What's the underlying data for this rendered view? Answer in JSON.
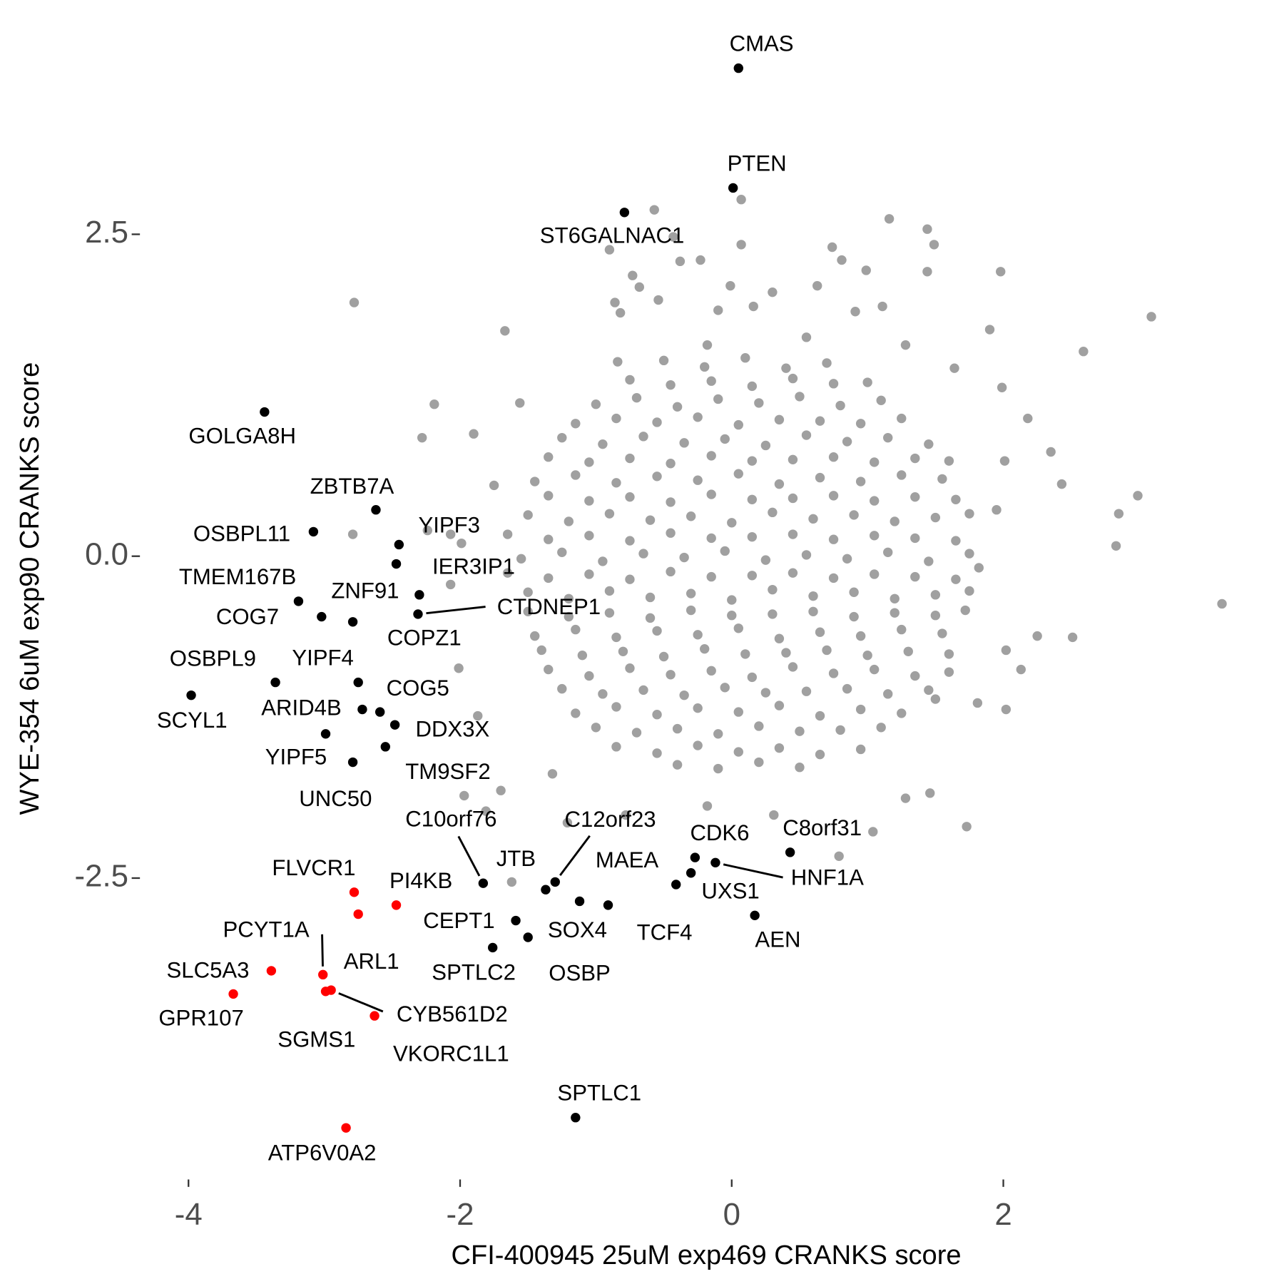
{
  "chart_data": {
    "type": "scatter",
    "x_label": "CFI-400945 25uM exp469 CRANKS score",
    "y_label": "WYE-354 6uM exp90 CRANKS score",
    "xlim": [
      -4.3,
      3.9
    ],
    "ylim": [
      -4.7,
      4.0
    ],
    "xticks": [
      -4,
      -2,
      0,
      2
    ],
    "yticks": [
      -2.5,
      {
        "value": 0,
        "label": "0.0"
      },
      2.5
    ],
    "series": [
      {
        "color": "#a0a0a0",
        "x": [
          -0.5,
          -0.2,
          0.1,
          0.4,
          0.7,
          -1.0,
          -0.7,
          -0.4,
          -0.1,
          0.2,
          0.5,
          0.8,
          1.1,
          -1.25,
          -0.95,
          -0.65,
          -0.35,
          -0.05,
          0.25,
          0.55,
          0.85,
          1.15,
          1.45,
          -1.45,
          -1.15,
          -0.85,
          -0.55,
          -0.25,
          0.05,
          0.35,
          0.65,
          0.95,
          1.25,
          1.55,
          -1.5,
          -1.2,
          -0.9,
          -0.6,
          -0.3,
          0.0,
          0.3,
          0.6,
          0.9,
          1.2,
          1.5,
          1.75,
          -1.55,
          -1.25,
          -0.95,
          -0.65,
          -0.35,
          -0.05,
          0.25,
          0.55,
          0.85,
          1.15,
          1.45,
          1.75,
          -1.5,
          -1.2,
          -0.9,
          -0.6,
          -0.3,
          0.0,
          0.3,
          0.6,
          0.9,
          1.2,
          1.5,
          1.75,
          -1.45,
          -1.15,
          -0.85,
          -0.55,
          -0.25,
          0.05,
          0.35,
          0.65,
          0.95,
          1.25,
          1.55,
          -1.35,
          -1.05,
          -0.75,
          -0.45,
          -0.15,
          0.15,
          0.45,
          0.75,
          1.05,
          1.35,
          1.6,
          -1.15,
          -0.85,
          -0.55,
          -0.25,
          0.05,
          0.35,
          0.65,
          0.95,
          1.25,
          -0.85,
          -0.55,
          -0.25,
          0.05,
          0.35,
          0.65,
          0.95,
          -0.75,
          -0.45,
          -0.15,
          0.15,
          0.45,
          0.75,
          1.0,
          -1.15,
          -0.85,
          -0.55,
          -0.25,
          0.05,
          0.35,
          0.65,
          0.95,
          1.25,
          -1.35,
          -1.05,
          -0.75,
          -0.45,
          -0.15,
          0.15,
          0.45,
          0.75,
          1.05,
          1.35,
          1.6,
          -1.35,
          -1.05,
          -0.75,
          -0.45,
          -0.15,
          0.15,
          0.45,
          0.75,
          1.05,
          1.35,
          1.65,
          -1.65,
          -1.35,
          -1.05,
          -0.75,
          -0.45,
          -0.15,
          0.15,
          0.45,
          0.75,
          1.05,
          1.35,
          1.65,
          -1.65,
          -1.35,
          -1.05,
          -0.75,
          -0.45,
          -0.15,
          0.15,
          0.45,
          0.75,
          1.05,
          1.35,
          1.65,
          -1.5,
          -1.2,
          -0.9,
          -0.6,
          -0.3,
          0.0,
          0.3,
          0.6,
          0.9,
          1.2,
          1.5,
          1.72,
          -1.4,
          -1.1,
          -0.8,
          -0.5,
          -0.2,
          0.1,
          0.4,
          0.7,
          1.0,
          1.3,
          1.6,
          -1.25,
          -0.95,
          -0.65,
          -0.35,
          -0.05,
          0.25,
          0.55,
          0.85,
          1.15,
          1.45,
          -1.0,
          -0.7,
          -0.4,
          -0.1,
          0.2,
          0.5,
          0.8,
          1.1,
          -0.4,
          -0.1,
          0.2,
          0.5,
          -0.57,
          0.07,
          0.07,
          -0.43,
          -0.9,
          -0.38,
          -0.23,
          1.16,
          1.44,
          1.49,
          0.74,
          0.81,
          0.99,
          1.44,
          1.98,
          -0.73,
          -0.68,
          -0.01,
          0.3,
          0.63,
          -2.78,
          3.09,
          -0.86,
          -0.82,
          -0.54,
          0.16,
          -0.1,
          0.91,
          1.11,
          -1.67,
          1.9,
          2.59,
          1.64,
          1.99,
          -2.19,
          -1.56,
          2.18,
          -2.28,
          -1.9,
          2.35,
          2.43,
          2.99,
          2.85,
          2.83,
          -2.79,
          3.61,
          2.51,
          2.25,
          2.02,
          2.13,
          1.5,
          2.02,
          1.81,
          1.46,
          1.73,
          1.28,
          0.79,
          -1.97,
          -1.7,
          -1.62,
          -1.32,
          -1.81,
          -2.01,
          -2.07,
          -2.24,
          -2.07,
          -1.99,
          -1.75,
          -1.87,
          -1.21,
          -0.78,
          -0.18,
          0.31,
          1.04,
          1.82,
          1.95,
          2.01,
          1.28,
          0.55,
          -0.18,
          -0.84
        ],
        "values": [
          1.52,
          1.47,
          1.54,
          1.46,
          1.5,
          1.18,
          1.23,
          1.16,
          1.22,
          1.19,
          1.24,
          1.17,
          1.21,
          0.92,
          0.87,
          0.93,
          0.88,
          0.91,
          0.86,
          0.94,
          0.89,
          0.92,
          0.87,
          0.58,
          0.63,
          0.57,
          0.62,
          0.59,
          0.64,
          0.56,
          0.61,
          0.58,
          0.63,
          0.6,
          0.32,
          0.27,
          0.33,
          0.28,
          0.31,
          0.26,
          0.34,
          0.29,
          0.32,
          0.27,
          0.3,
          0.33,
          -0.02,
          0.03,
          -0.04,
          0.02,
          -0.01,
          0.04,
          -0.03,
          0.01,
          -0.02,
          0.03,
          -0.04,
          0.02,
          -0.28,
          -0.33,
          -0.27,
          -0.32,
          -0.29,
          -0.34,
          -0.26,
          -0.31,
          -0.28,
          -0.33,
          -0.3,
          -0.27,
          -0.62,
          -0.57,
          -0.63,
          -0.58,
          -0.61,
          -0.56,
          -0.64,
          -0.59,
          -0.62,
          -0.57,
          -0.6,
          -0.88,
          -0.93,
          -0.87,
          -0.92,
          -0.89,
          -0.94,
          -0.86,
          -0.91,
          -0.88,
          -0.93,
          -0.9,
          -1.22,
          -1.17,
          -1.23,
          -1.18,
          -1.21,
          -1.16,
          -1.24,
          -1.19,
          -1.22,
          -1.48,
          -1.53,
          -1.47,
          -1.52,
          -1.49,
          -1.54,
          -1.5,
          1.37,
          1.33,
          1.36,
          1.32,
          1.38,
          1.34,
          1.35,
          1.03,
          1.07,
          1.04,
          1.08,
          1.02,
          1.06,
          1.05,
          1.03,
          1.07,
          0.77,
          0.73,
          0.76,
          0.72,
          0.78,
          0.74,
          0.75,
          0.77,
          0.73,
          0.76,
          0.74,
          0.47,
          0.43,
          0.46,
          0.42,
          0.48,
          0.44,
          0.45,
          0.47,
          0.43,
          0.46,
          0.44,
          0.17,
          0.13,
          0.16,
          0.12,
          0.18,
          0.14,
          0.15,
          0.17,
          0.13,
          0.16,
          0.14,
          0.12,
          -0.13,
          -0.17,
          -0.14,
          -0.18,
          -0.12,
          -0.16,
          -0.15,
          -0.13,
          -0.17,
          -0.14,
          -0.16,
          -0.18,
          -0.43,
          -0.47,
          -0.44,
          -0.48,
          -0.42,
          -0.46,
          -0.45,
          -0.43,
          -0.47,
          -0.44,
          -0.46,
          -0.42,
          -0.73,
          -0.77,
          -0.74,
          -0.78,
          -0.72,
          -0.76,
          -0.75,
          -0.73,
          -0.77,
          -0.74,
          -0.76,
          -1.03,
          -1.07,
          -1.04,
          -1.08,
          -1.02,
          -1.06,
          -1.05,
          -1.03,
          -1.07,
          -1.04,
          -1.33,
          -1.37,
          -1.34,
          -1.38,
          -1.32,
          -1.36,
          -1.35,
          -1.33,
          -1.62,
          -1.65,
          -1.6,
          -1.64,
          2.69,
          2.77,
          2.42,
          2.48,
          2.38,
          2.29,
          2.3,
          2.62,
          2.54,
          2.42,
          2.4,
          2.3,
          2.22,
          2.21,
          2.21,
          2.18,
          2.09,
          2.1,
          2.05,
          2.1,
          1.97,
          1.86,
          1.97,
          1.89,
          1.99,
          1.94,
          1.91,
          1.9,
          1.94,
          1.75,
          1.76,
          1.59,
          1.46,
          1.31,
          1.18,
          1.19,
          1.07,
          0.92,
          0.95,
          0.81,
          0.56,
          0.47,
          0.33,
          0.08,
          0.17,
          -0.37,
          -0.63,
          -0.62,
          -0.73,
          -0.88,
          -1.11,
          -1.19,
          -1.14,
          -1.84,
          -2.1,
          -1.88,
          -2.33,
          -1.86,
          -1.82,
          -2.53,
          -1.69,
          -1.98,
          -0.87,
          0.17,
          0.2,
          -0.22,
          0.1,
          0.55,
          -1.24,
          -2.07,
          -2.01,
          -1.94,
          -2.01,
          -2.14,
          -0.09,
          0.36,
          0.74,
          1.64,
          1.7,
          1.64,
          1.51
        ]
      },
      {
        "color": "#000000",
        "labels": [
          "CMAS",
          "PTEN",
          "ST6GALNAC1",
          "GOLGA8H",
          "ZBTB7A",
          "OSBPL11",
          "YIPF3",
          "IER3IP1",
          "TMEM167B",
          "ZNF91",
          "COG7",
          "COPZ1",
          "CTDNEP1",
          "OSBPL9",
          "SCYL1",
          "YIPF4",
          "COG5",
          "ARID4B",
          "DDX3X",
          "YIPF5",
          "TM9SF2",
          "UNC50",
          "C10orf76",
          "JTB",
          "C12orf23",
          "MAEA",
          "OSBP",
          "CEPT1",
          "SOX4",
          "SPTLC2",
          "TCF4",
          "CDK6",
          "UXS1",
          "HNF1A",
          "C8orf31",
          "AEN",
          "SPTLC1"
        ],
        "x": [
          0.05,
          0.01,
          -0.79,
          -3.44,
          -2.62,
          -3.08,
          -2.45,
          -2.47,
          -3.19,
          -2.79,
          -3.02,
          -2.3,
          -2.31,
          -3.36,
          -3.98,
          -2.75,
          -2.59,
          -2.72,
          -2.48,
          -2.99,
          -2.55,
          -2.79,
          -1.83,
          -1.37,
          -1.3,
          -0.91,
          -1.12,
          -1.59,
          -1.5,
          -1.76,
          -0.41,
          -0.27,
          -0.3,
          -0.12,
          0.43,
          0.17,
          -1.15
        ],
        "values": [
          3.79,
          2.86,
          2.67,
          1.12,
          0.36,
          0.19,
          0.09,
          -0.06,
          -0.35,
          -0.51,
          -0.47,
          -0.3,
          -0.45,
          -0.98,
          -1.08,
          -0.98,
          -1.21,
          -1.19,
          -1.31,
          -1.38,
          -1.48,
          -1.6,
          -2.54,
          -2.59,
          -2.53,
          -2.71,
          -2.68,
          -2.83,
          -2.96,
          -3.04,
          -2.55,
          -2.34,
          -2.46,
          -2.38,
          -2.3,
          -2.79,
          -4.36
        ]
      },
      {
        "color": "#ff0000",
        "labels": [
          "FLVCR1",
          "PI4KB",
          "ARL1",
          "PCYT1A",
          "SLC5A3",
          "GPR107",
          "SGMS1",
          "CYB561D2",
          "VKORC1L1",
          "ATP6V0A2"
        ],
        "x": [
          -2.78,
          -2.47,
          -2.75,
          -3.01,
          -3.39,
          -3.67,
          -2.99,
          -2.95,
          -2.63,
          -2.84
        ],
        "values": [
          -2.61,
          -2.71,
          -2.78,
          -3.25,
          -3.22,
          -3.4,
          -3.38,
          -3.37,
          -3.57,
          -4.44
        ]
      }
    ]
  }
}
